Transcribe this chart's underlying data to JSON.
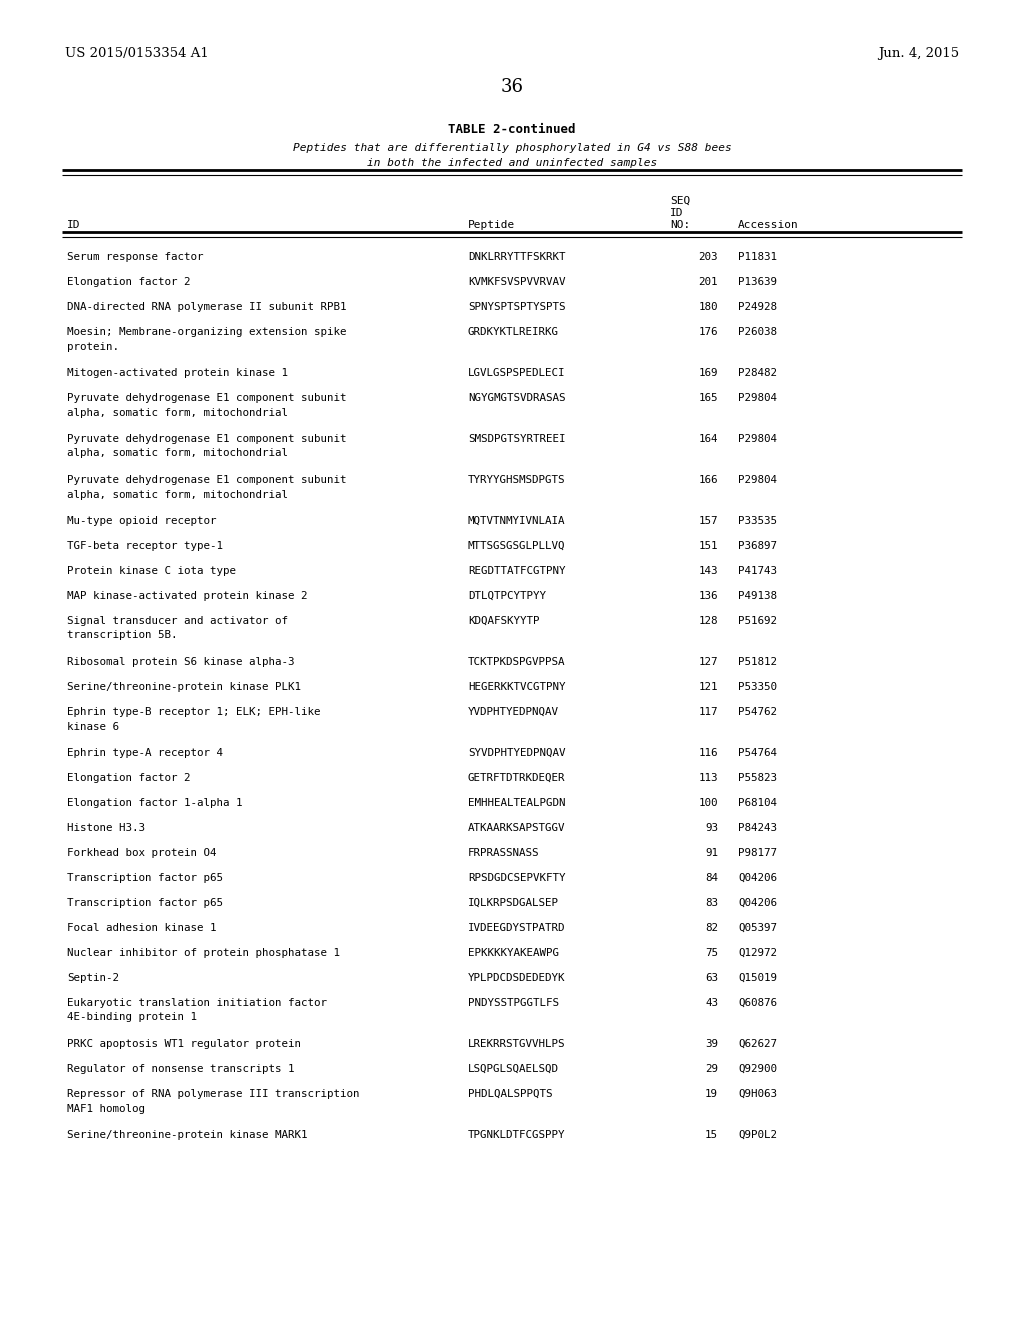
{
  "header_left": "US 2015/0153354 A1",
  "header_right": "Jun. 4, 2015",
  "page_number": "36",
  "table_title": "TABLE 2-continued",
  "table_subtitle1": "Peptides that are differentially phosphorylated in G4 vs S88 bees",
  "table_subtitle2": "in both the infected and uninfected samples",
  "rows": [
    [
      "Serum response factor",
      "DNKLRRYTTFSKRKT",
      "203",
      "P11831"
    ],
    [
      "Elongation factor 2",
      "KVMKFSVSPVVRVAV",
      "201",
      "P13639"
    ],
    [
      "DNA-directed RNA polymerase II subunit RPB1",
      "SPNYSPTSPTYSPTS",
      "180",
      "P24928"
    ],
    [
      "Moesin; Membrane-organizing extension spike\nprotein.",
      "GRDKYKTLREIRKG",
      "176",
      "P26038"
    ],
    [
      "Mitogen-activated protein kinase 1",
      "LGVLGSPSPEDLECI",
      "169",
      "P28482"
    ],
    [
      "Pyruvate dehydrogenase E1 component subunit\nalpha, somatic form, mitochondrial",
      "NGYGMGTSVDRASAS",
      "165",
      "P29804"
    ],
    [
      "Pyruvate dehydrogenase E1 component subunit\nalpha, somatic form, mitochondrial",
      "SMSDPGTSYRTREEI",
      "164",
      "P29804"
    ],
    [
      "Pyruvate dehydrogenase E1 component subunit\nalpha, somatic form, mitochondrial",
      "TYRYYGHSMSDPGTS",
      "166",
      "P29804"
    ],
    [
      "Mu-type opioid receptor",
      "MQTVTNMYIVNLAIA",
      "157",
      "P33535"
    ],
    [
      "TGF-beta receptor type-1",
      "MTTSGSGSGLPLLVQ",
      "151",
      "P36897"
    ],
    [
      "Protein kinase C iota type",
      "REGDTTATFCGTPNY",
      "143",
      "P41743"
    ],
    [
      "MAP kinase-activated protein kinase 2",
      "DTLQTPCYTPYY",
      "136",
      "P49138"
    ],
    [
      "Signal transducer and activator of\ntranscription 5B.",
      "KDQAFSKYYTP",
      "128",
      "P51692"
    ],
    [
      "Ribosomal protein S6 kinase alpha-3",
      "TCKTPKDSPGVPPSA",
      "127",
      "P51812"
    ],
    [
      "Serine/threonine-protein kinase PLK1",
      "HEGERKKTVCGTPNY",
      "121",
      "P53350"
    ],
    [
      "Ephrin type-B receptor 1; ELK; EPH-like\nkinase 6",
      "YVDPHTYEDPNQAV",
      "117",
      "P54762"
    ],
    [
      "Ephrin type-A receptor 4",
      "SYVDPHTYEDPNQAV",
      "116",
      "P54764"
    ],
    [
      "Elongation factor 2",
      "GETRFTDTRKDEQER",
      "113",
      "P55823"
    ],
    [
      "Elongation factor 1-alpha 1",
      "EMHHEALTEALPGDN",
      "100",
      "P68104"
    ],
    [
      "Histone H3.3",
      "ATKAARKSAPSTGGV",
      "93",
      "P84243"
    ],
    [
      "Forkhead box protein O4",
      "FRPRASSNASS",
      "91",
      "P98177"
    ],
    [
      "Transcription factor p65",
      "RPSDGDCSEPVKFTY",
      "84",
      "Q04206"
    ],
    [
      "Transcription factor p65",
      "IQLKRPSDGALSEP",
      "83",
      "Q04206"
    ],
    [
      "Focal adhesion kinase 1",
      "IVDEEGDYSTPATRD",
      "82",
      "Q05397"
    ],
    [
      "Nuclear inhibitor of protein phosphatase 1",
      "EPKKKKYAKEAWPG",
      "75",
      "Q12972"
    ],
    [
      "Septin-2",
      "YPLPDCDSDEDEDYK",
      "63",
      "Q15019"
    ],
    [
      "Eukaryotic translation initiation factor\n4E-binding protein 1",
      "PNDYSSTPGGTLFS",
      "43",
      "Q60876"
    ],
    [
      "PRKC apoptosis WT1 regulator protein",
      "LREKRRSTGVVHLPS",
      "39",
      "Q62627"
    ],
    [
      "Regulator of nonsense transcripts 1",
      "LSQPGLSQAELSQD",
      "29",
      "Q92900"
    ],
    [
      "Repressor of RNA polymerase III transcription\nMAF1 homolog",
      "PHDLQALSPPQTS",
      "19",
      "Q9H063"
    ],
    [
      "Serine/threonine-protein kinase MARK1",
      "TPGNKLDTFCGSPPY",
      "15",
      "Q9P0L2"
    ]
  ]
}
